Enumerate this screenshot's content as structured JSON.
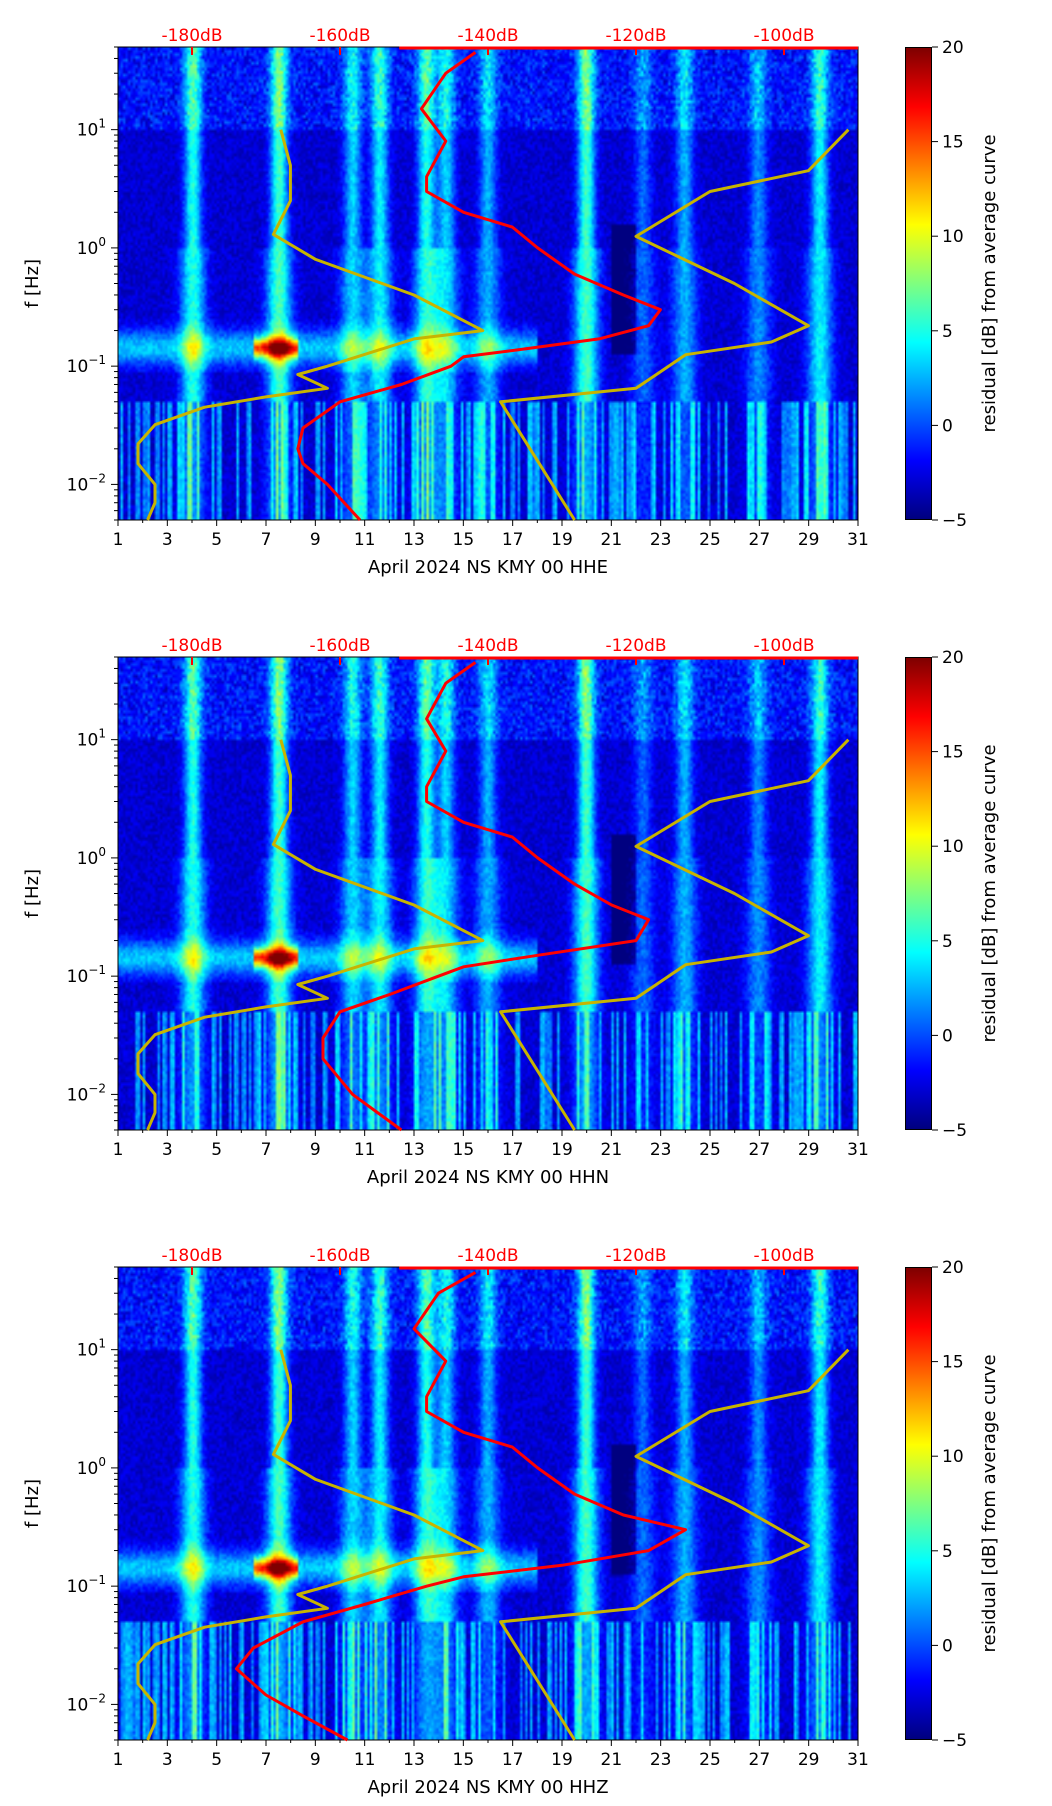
{
  "chart_data": [
    {
      "type": "heatmap",
      "title": "",
      "xlabel": "April 2024 NS KMY 00 HHE",
      "ylabel": "f [Hz]",
      "colorbar_label": "residual [dB] from average curve",
      "xlim": [
        1,
        31
      ],
      "ylim": [
        0.005,
        50
      ],
      "yscale": "log",
      "x_ticks": [
        "1",
        "3",
        "5",
        "7",
        "9",
        "11",
        "13",
        "15",
        "17",
        "19",
        "21",
        "23",
        "25",
        "27",
        "29",
        "31"
      ],
      "y_ticks": [
        {
          "value": 0.01,
          "base": "10",
          "exp": "−2"
        },
        {
          "value": 0.1,
          "base": "10",
          "exp": "−1"
        },
        {
          "value": 1,
          "base": "10",
          "exp": "0"
        },
        {
          "value": 10,
          "base": "10",
          "exp": "1"
        }
      ],
      "top_ticks": [
        "-180dB",
        "-160dB",
        "-140dB",
        "-120dB",
        "-100dB"
      ],
      "top_tick_values_db": [
        -180,
        -160,
        -140,
        -120,
        -100
      ],
      "colorbar_ticks": [
        "20",
        "15",
        "10",
        "5",
        "0",
        "−5"
      ],
      "colorbar_range": [
        -5,
        20
      ],
      "series": [
        {
          "name": "average PSD",
          "color": "#ff0000",
          "freq_hz": [
            45,
            30,
            15,
            8,
            4,
            3,
            2,
            1.5,
            1,
            0.6,
            0.4,
            0.3,
            0.22,
            0.17,
            0.14,
            0.12,
            0.1,
            0.07,
            0.05,
            0.03,
            0.02,
            0.015,
            0.01,
            0.005
          ],
          "db": [
            -141.7,
            -145.7,
            -149,
            -145.7,
            -148.3,
            -148.3,
            -143.3,
            -136.7,
            -133.3,
            -128.3,
            -121.7,
            -116.7,
            -118.3,
            -125,
            -135,
            -143.3,
            -145,
            -151.7,
            -160,
            -165,
            -165.7,
            -165,
            -161.7,
            -157.3
          ]
        },
        {
          "name": "NLNM",
          "color": "#c8b400",
          "freq_hz": [
            10,
            5,
            2.5,
            1.3,
            0.8,
            0.4,
            0.2,
            0.17,
            0.1,
            0.085,
            0.065,
            0.055,
            0.045,
            0.032,
            0.022,
            0.015,
            0.01,
            0.007,
            0.005
          ],
          "db": [
            -168,
            -166.7,
            -166.7,
            -169,
            -163.3,
            -150,
            -140.7,
            -150,
            -161.7,
            -165.7,
            -161.7,
            -170,
            -178.3,
            -185,
            -187.3,
            -187.3,
            -185,
            -185,
            -186
          ]
        },
        {
          "name": "NHNM",
          "color": "#c8b400",
          "freq_hz": [
            10,
            4.5,
            3,
            1.25,
            0.5,
            0.22,
            0.16,
            0.125,
            0.065,
            0.05,
            0.005
          ],
          "db": [
            -91.3,
            -96.7,
            -110,
            -120,
            -106.7,
            -96.7,
            -101.7,
            -113.3,
            -120,
            -138.3,
            -128.3
          ]
        }
      ]
    },
    {
      "type": "heatmap",
      "xlabel": "April 2024 NS KMY 00 HHN",
      "ylabel": "f [Hz]",
      "colorbar_label": "residual [dB] from average curve",
      "xlim": [
        1,
        31
      ],
      "ylim": [
        0.005,
        50
      ],
      "yscale": "log",
      "x_ticks": [
        "1",
        "3",
        "5",
        "7",
        "9",
        "11",
        "13",
        "15",
        "17",
        "19",
        "21",
        "23",
        "25",
        "27",
        "29",
        "31"
      ],
      "y_ticks": [
        {
          "value": 0.01,
          "base": "10",
          "exp": "−2"
        },
        {
          "value": 0.1,
          "base": "10",
          "exp": "−1"
        },
        {
          "value": 1,
          "base": "10",
          "exp": "0"
        },
        {
          "value": 10,
          "base": "10",
          "exp": "1"
        }
      ],
      "top_ticks": [
        "-180dB",
        "-160dB",
        "-140dB",
        "-120dB",
        "-100dB"
      ],
      "top_tick_values_db": [
        -180,
        -160,
        -140,
        -120,
        -100
      ],
      "colorbar_ticks": [
        "20",
        "15",
        "10",
        "5",
        "0",
        "−5"
      ],
      "colorbar_range": [
        -5,
        20
      ],
      "series": [
        {
          "name": "average PSD",
          "color": "#ff0000",
          "freq_hz": [
            45,
            30,
            15,
            8,
            4,
            3,
            2,
            1.5,
            1,
            0.6,
            0.4,
            0.3,
            0.2,
            0.15,
            0.12,
            0.1,
            0.07,
            0.05,
            0.03,
            0.02,
            0.01,
            0.005
          ],
          "db": [
            -141.7,
            -145.7,
            -148.3,
            -145.7,
            -148.3,
            -148.3,
            -143.3,
            -136.7,
            -133.3,
            -128.3,
            -123.3,
            -118.3,
            -120,
            -133.3,
            -143.3,
            -146.7,
            -153.3,
            -160,
            -162.3,
            -162.3,
            -158.3,
            -151.7
          ]
        },
        {
          "name": "NLNM",
          "color": "#c8b400",
          "freq_hz": [
            10,
            5,
            2.5,
            1.3,
            0.8,
            0.4,
            0.2,
            0.17,
            0.1,
            0.085,
            0.065,
            0.055,
            0.045,
            0.032,
            0.022,
            0.015,
            0.01,
            0.007,
            0.005
          ],
          "db": [
            -168,
            -166.7,
            -166.7,
            -169,
            -163.3,
            -150,
            -140.7,
            -150,
            -161.7,
            -165.7,
            -161.7,
            -170,
            -178.3,
            -185,
            -187.3,
            -187.3,
            -185,
            -185,
            -186
          ]
        },
        {
          "name": "NHNM",
          "color": "#c8b400",
          "freq_hz": [
            10,
            4.5,
            3,
            1.25,
            0.5,
            0.22,
            0.16,
            0.125,
            0.065,
            0.05,
            0.005
          ],
          "db": [
            -91.3,
            -96.7,
            -110,
            -120,
            -106.7,
            -96.7,
            -101.7,
            -113.3,
            -120,
            -138.3,
            -128.3
          ]
        }
      ]
    },
    {
      "type": "heatmap",
      "xlabel": "April 2024 NS KMY 00 HHZ",
      "ylabel": "f [Hz]",
      "colorbar_label": "residual [dB] from average curve",
      "xlim": [
        1,
        31
      ],
      "ylim": [
        0.005,
        50
      ],
      "yscale": "log",
      "x_ticks": [
        "1",
        "3",
        "5",
        "7",
        "9",
        "11",
        "13",
        "15",
        "17",
        "19",
        "21",
        "23",
        "25",
        "27",
        "29",
        "31"
      ],
      "y_ticks": [
        {
          "value": 0.01,
          "base": "10",
          "exp": "−2"
        },
        {
          "value": 0.1,
          "base": "10",
          "exp": "−1"
        },
        {
          "value": 1,
          "base": "10",
          "exp": "0"
        },
        {
          "value": 10,
          "base": "10",
          "exp": "1"
        }
      ],
      "top_ticks": [
        "-180dB",
        "-160dB",
        "-140dB",
        "-120dB",
        "-100dB"
      ],
      "top_tick_values_db": [
        -180,
        -160,
        -140,
        -120,
        -100
      ],
      "colorbar_ticks": [
        "20",
        "15",
        "10",
        "5",
        "0",
        "−5"
      ],
      "colorbar_range": [
        -5,
        20
      ],
      "series": [
        {
          "name": "average PSD",
          "color": "#ff0000",
          "freq_hz": [
            45,
            30,
            15,
            8,
            4,
            3,
            2,
            1.5,
            1,
            0.6,
            0.4,
            0.3,
            0.2,
            0.15,
            0.12,
            0.1,
            0.07,
            0.05,
            0.03,
            0.02,
            0.012,
            0.008,
            0.005
          ],
          "db": [
            -141.7,
            -146.7,
            -150,
            -145.7,
            -148.3,
            -148.3,
            -143.3,
            -136.7,
            -133.3,
            -128.3,
            -121.7,
            -113.3,
            -118.3,
            -130,
            -143.3,
            -148.3,
            -156.7,
            -165,
            -171.7,
            -174,
            -170,
            -165,
            -159
          ]
        },
        {
          "name": "NLNM",
          "color": "#c8b400",
          "freq_hz": [
            10,
            5,
            2.5,
            1.3,
            0.8,
            0.4,
            0.2,
            0.17,
            0.1,
            0.085,
            0.065,
            0.055,
            0.045,
            0.032,
            0.022,
            0.015,
            0.01,
            0.007,
            0.005
          ],
          "db": [
            -168,
            -166.7,
            -166.7,
            -169,
            -163.3,
            -150,
            -140.7,
            -150,
            -161.7,
            -165.7,
            -161.7,
            -170,
            -178.3,
            -185,
            -187.3,
            -187.3,
            -185,
            -185,
            -186
          ]
        },
        {
          "name": "NHNM",
          "color": "#c8b400",
          "freq_hz": [
            10,
            4.5,
            3,
            1.25,
            0.5,
            0.22,
            0.16,
            0.125,
            0.065,
            0.05,
            0.005
          ],
          "db": [
            -91.3,
            -96.7,
            -110,
            -120,
            -106.7,
            -96.7,
            -101.7,
            -113.3,
            -120,
            -138.3,
            -128.3
          ]
        }
      ]
    }
  ]
}
